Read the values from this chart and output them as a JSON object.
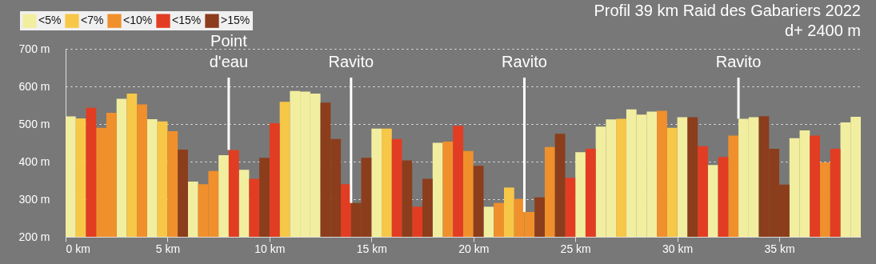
{
  "chart_data": {
    "type": "bar",
    "title": "Profil 39 km Raid des Gabariers 2022",
    "subtitle": "d+ 2400 m",
    "xlim": [
      0,
      39
    ],
    "xticks": [
      {
        "value": 0,
        "label": "0 km"
      },
      {
        "value": 5,
        "label": "5 km"
      },
      {
        "value": 10,
        "label": "10 km"
      },
      {
        "value": 15,
        "label": "15 km"
      },
      {
        "value": 20,
        "label": "20 km"
      },
      {
        "value": 25,
        "label": "25 km"
      },
      {
        "value": 30,
        "label": "30 km"
      },
      {
        "value": 35,
        "label": "35 km"
      }
    ],
    "ylim": [
      200,
      700
    ],
    "yticks": [
      {
        "value": 200,
        "label": "200 m"
      },
      {
        "value": 300,
        "label": "300 m"
      },
      {
        "value": 400,
        "label": "400 m"
      },
      {
        "value": 500,
        "label": "500 m"
      },
      {
        "value": 600,
        "label": "600 m"
      },
      {
        "value": 700,
        "label": "700 m"
      }
    ],
    "grid": "y",
    "legend": "top left",
    "series": [
      {
        "name": "<5%",
        "color": "#f2eea0",
        "x": [
          0,
          2.5,
          4,
          6,
          7.5,
          8.5,
          11,
          11.5,
          12,
          15,
          18,
          20.5,
          25,
          26,
          26.5,
          27.5,
          28,
          28.5,
          30,
          31.5,
          33,
          33.5,
          35.5,
          36,
          38,
          38.5
        ],
        "values": [
          520,
          567,
          513,
          347,
          417,
          378,
          588,
          586,
          581,
          488,
          450,
          280,
          425,
          493,
          512,
          539,
          525,
          533,
          518,
          391,
          514,
          518,
          462,
          483,
          504,
          519
        ]
      },
      {
        "name": "<7%",
        "color": "#f7c748",
        "x": [
          0.5,
          3,
          4.5,
          10.5,
          15.5,
          21.5,
          27,
          29.5
        ],
        "values": [
          515,
          581,
          507,
          559,
          488,
          331,
          514,
          490
        ]
      },
      {
        "name": "<10%",
        "color": "#f0902c",
        "x": [
          1.5,
          2,
          3.5,
          5,
          6.5,
          7,
          18.5,
          19.5,
          21,
          22,
          22.5,
          23.5,
          29,
          32.5,
          37
        ],
        "values": [
          490,
          530,
          552,
          481,
          340,
          375,
          453,
          428,
          290,
          301,
          266,
          439,
          535,
          469,
          398
        ]
      },
      {
        "name": "<15%",
        "color": "#e23d22",
        "x": [
          1,
          8,
          9,
          10,
          13.5,
          16,
          17,
          19,
          24.5,
          25.5,
          31,
          32,
          36.5,
          37.5
        ],
        "values": [
          543,
          431,
          354,
          502,
          340,
          460,
          280,
          495,
          357,
          434,
          441,
          412,
          469,
          434
        ]
      },
      {
        "name": ">15%",
        "color": "#8c3d1c",
        "x": [
          5.5,
          9.5,
          12.5,
          13,
          14,
          14.5,
          16.5,
          17.5,
          20,
          23,
          24,
          30.5,
          34,
          34.5,
          35
        ],
        "values": [
          432,
          410,
          557,
          460,
          290,
          410,
          403,
          354,
          389,
          305,
          474,
          518,
          521,
          434,
          339
        ]
      }
    ],
    "annotations": [
      {
        "text": "Point d'eau",
        "x": 8,
        "y": 431
      },
      {
        "text": "Ravito",
        "x": 14,
        "y": 290
      },
      {
        "text": "Ravito",
        "x": 22.5,
        "y": 266
      },
      {
        "text": "Ravito",
        "x": 33,
        "y": 514
      }
    ]
  }
}
